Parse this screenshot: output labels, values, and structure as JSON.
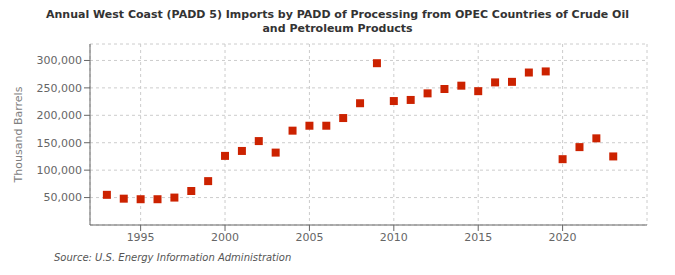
{
  "chart_data": {
    "type": "scatter",
    "title": "Annual West Coast (PADD 5) Imports by PADD of Processing from OPEC Countries of Crude Oil\nand Petroleum Products",
    "ylabel": "Thousand Barrels",
    "annotations": [
      "Source: U.S. Energy Information Administration"
    ],
    "color": "#cc2200",
    "marker": "square",
    "grid": true,
    "x": [
      1993,
      1994,
      1995,
      1996,
      1997,
      1998,
      1999,
      2000,
      2001,
      2002,
      2003,
      2004,
      2005,
      2006,
      2007,
      2008,
      2009,
      2010,
      2011,
      2012,
      2013,
      2014,
      2015,
      2016,
      2017,
      2018,
      2019,
      2020,
      2021,
      2022,
      2023
    ],
    "values": [
      55000,
      48000,
      47000,
      47000,
      50000,
      62000,
      80000,
      126000,
      135000,
      153000,
      132000,
      172000,
      181000,
      181000,
      195000,
      222000,
      295000,
      226000,
      228000,
      240000,
      248000,
      254000,
      244000,
      260000,
      261000,
      278000,
      280000,
      120000,
      142000,
      158000,
      125000
    ],
    "xlim": [
      1992,
      2025
    ],
    "xticks": [
      1995,
      2000,
      2005,
      2010,
      2015,
      2020
    ],
    "ylim": [
      0,
      330000
    ],
    "yticks": [
      {
        "value": 50000,
        "label": "50,000"
      },
      {
        "value": 100000,
        "label": "100,000"
      },
      {
        "value": 150000,
        "label": "150,000"
      },
      {
        "value": 200000,
        "label": "200,000"
      },
      {
        "value": 250000,
        "label": "250,000"
      },
      {
        "value": 300000,
        "label": "300,000"
      }
    ]
  }
}
